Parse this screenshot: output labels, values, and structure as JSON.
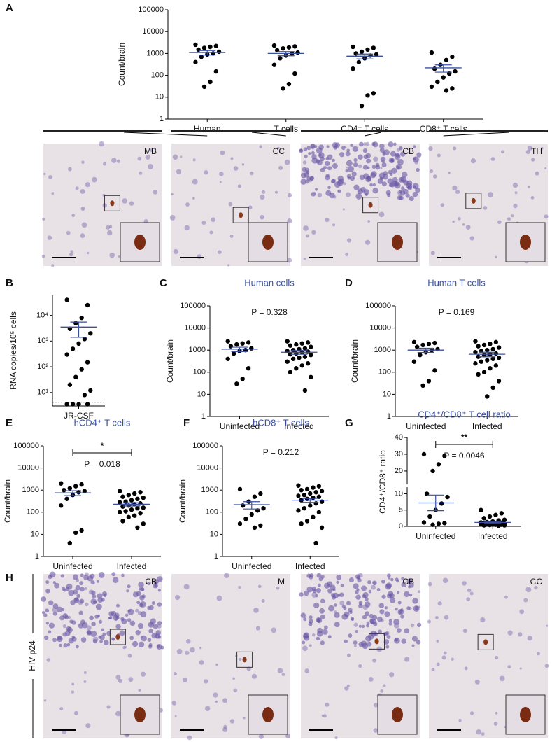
{
  "chart_data": [
    {
      "type": "strip",
      "panel": "A",
      "ylabel": "Count/brain",
      "log": true,
      "categories": [
        "Human",
        "T cells",
        "CD4⁺ T cells",
        "CD8⁺ T cells"
      ],
      "values": [
        [
          2500,
          2200,
          2000,
          1800,
          1500,
          1200,
          1000,
          900,
          700,
          400,
          150,
          50,
          30
        ],
        [
          2300,
          2100,
          1900,
          1700,
          1400,
          1100,
          1000,
          800,
          600,
          300,
          120,
          40,
          25
        ],
        [
          2000,
          1800,
          1500,
          1200,
          1000,
          900,
          800,
          600,
          400,
          200,
          15,
          12,
          4
        ],
        [
          1100,
          700,
          500,
          300,
          200,
          150,
          120,
          80,
          50,
          30,
          25,
          20
        ]
      ],
      "mean": [
        1100,
        1000,
        750,
        220
      ],
      "sem_low": [
        850,
        780,
        560,
        140
      ],
      "sem_high": [
        1350,
        1220,
        940,
        300
      ],
      "ylim": [
        1,
        100000
      ],
      "yticks": [
        1,
        10,
        100,
        1000,
        10000,
        100000
      ],
      "color": "#3a4fa0"
    },
    {
      "type": "strip",
      "panel": "B",
      "ylabel": "RNA copies/10⁵ cells",
      "log": true,
      "categories": [
        "JR-CSF"
      ],
      "values": [
        [
          40000,
          25000,
          8000,
          5000,
          3000,
          2000,
          1200,
          800,
          500,
          300,
          150,
          80,
          40,
          20,
          12,
          8,
          3.5,
          3.5,
          3.5,
          3.5
        ]
      ],
      "mean": [
        3500
      ],
      "sem_low": [
        1400
      ],
      "sem_high": [
        5500
      ],
      "detection_limit": 4.2,
      "ylim": [
        3,
        60000
      ],
      "yticks": [
        {
          "value": 10,
          "label": "10¹"
        },
        {
          "value": 100,
          "label": "10²"
        },
        {
          "value": 1000,
          "label": "10³"
        },
        {
          "value": 10000,
          "label": "10⁴"
        }
      ],
      "color": "#3a4fa0"
    },
    {
      "type": "strip",
      "panel": "C",
      "title": "Human cells",
      "p_label": "P = 0.328",
      "ylabel": "Count/brain",
      "log": true,
      "categories": [
        "Uninfected",
        "Infected"
      ],
      "values": [
        [
          2500,
          2200,
          2000,
          1800,
          1500,
          1200,
          1000,
          900,
          700,
          400,
          150,
          50,
          30
        ],
        [
          2500,
          2200,
          2000,
          1800,
          1600,
          1400,
          1200,
          1100,
          1000,
          900,
          850,
          800,
          700,
          650,
          600,
          500,
          450,
          400,
          300,
          250,
          200,
          150,
          100,
          60,
          15
        ]
      ],
      "mean": [
        1100,
        800
      ],
      "sem_low": [
        850,
        650
      ],
      "sem_high": [
        1350,
        950
      ],
      "ylim": [
        1,
        100000
      ],
      "yticks": [
        1,
        10,
        100,
        1000,
        10000,
        100000
      ],
      "color": "#3a4fa0"
    },
    {
      "type": "strip",
      "panel": "D",
      "title": "Human T cells",
      "p_label": "P = 0.169",
      "ylabel": "Count/brain",
      "log": true,
      "categories": [
        "Uninfected",
        "Infected"
      ],
      "values": [
        [
          2300,
          2100,
          1900,
          1700,
          1400,
          1100,
          1000,
          800,
          600,
          300,
          120,
          40,
          25
        ],
        [
          2500,
          2300,
          1900,
          1700,
          1500,
          1300,
          1100,
          1000,
          900,
          800,
          700,
          650,
          600,
          500,
          450,
          400,
          350,
          300,
          250,
          200,
          150,
          100,
          80,
          40,
          20,
          8
        ]
      ],
      "mean": [
        1000,
        650
      ],
      "sem_low": [
        780,
        500
      ],
      "sem_high": [
        1220,
        800
      ],
      "ylim": [
        1,
        100000
      ],
      "yticks": [
        1,
        10,
        100,
        1000,
        10000,
        100000
      ],
      "color": "#3a4fa0"
    },
    {
      "type": "strip",
      "panel": "E",
      "title": "hCD4⁺ T cells",
      "p_label": "P = 0.018",
      "significance": "*",
      "ylabel": "Count/brain",
      "log": true,
      "categories": [
        "Uninfected",
        "Infected"
      ],
      "values": [
        [
          2000,
          1800,
          1500,
          1200,
          1000,
          900,
          800,
          600,
          400,
          200,
          15,
          12,
          4
        ],
        [
          900,
          800,
          700,
          600,
          500,
          450,
          400,
          350,
          300,
          280,
          250,
          230,
          200,
          180,
          160,
          150,
          130,
          110,
          100,
          90,
          70,
          60,
          40,
          30,
          20
        ]
      ],
      "mean": [
        750,
        230
      ],
      "sem_low": [
        560,
        190
      ],
      "sem_high": [
        940,
        270
      ],
      "ylim": [
        1,
        100000
      ],
      "yticks": [
        1,
        10,
        100,
        1000,
        10000,
        100000
      ],
      "color": "#3a4fa0"
    },
    {
      "type": "strip",
      "panel": "F",
      "title": "hCD8⁺ T cells",
      "p_label": "P = 0.212",
      "ylabel": "Count/brain",
      "log": true,
      "categories": [
        "Uninfected",
        "Infected"
      ],
      "values": [
        [
          1100,
          700,
          500,
          300,
          200,
          150,
          120,
          80,
          50,
          30,
          25,
          20
        ],
        [
          1600,
          1500,
          1300,
          1100,
          1000,
          900,
          800,
          700,
          600,
          550,
          500,
          450,
          400,
          350,
          300,
          250,
          200,
          150,
          120,
          100,
          60,
          40,
          30,
          20,
          4
        ]
      ],
      "mean": [
        220,
        350
      ],
      "sem_low": [
        140,
        280
      ],
      "sem_high": [
        300,
        420
      ],
      "ylim": [
        1,
        100000
      ],
      "yticks": [
        1,
        10,
        100,
        1000,
        10000,
        100000
      ],
      "color": "#3a4fa0"
    },
    {
      "type": "strip",
      "panel": "G",
      "title": "CD4⁺/CD8⁺ T cell ratio",
      "p_label": "P = 0.0046",
      "significance": "**",
      "ylabel": "CD4⁺/CD8⁺ ratio",
      "log": false,
      "categories": [
        "Uninfected",
        "Infected"
      ],
      "values": [
        [
          30,
          29,
          24,
          20,
          10,
          9,
          7,
          5,
          3,
          1.2,
          1,
          0.8,
          0.5
        ],
        [
          5,
          4,
          3.5,
          3,
          2.5,
          2,
          1.8,
          1.5,
          1.3,
          1.2,
          1.1,
          1,
          1,
          0.9,
          0.8,
          0.8,
          0.7,
          0.7,
          0.6,
          0.5,
          0.5,
          0.4,
          0.3,
          0.3,
          0.2
        ]
      ],
      "mean": [
        7.2,
        1.2
      ],
      "sem_low": [
        4.8,
        0.9
      ],
      "sem_high": [
        9.6,
        1.5
      ],
      "ylim": [
        0,
        40
      ],
      "axis_break": 12,
      "yticks": [
        0,
        5,
        10,
        20,
        30,
        40
      ],
      "color": "#3a4fa0"
    }
  ],
  "images_a": {
    "labels": [
      "MB",
      "CC",
      "CB",
      "TH"
    ]
  },
  "images_h": {
    "panel": "H",
    "y_label": "HIV p24",
    "labels": [
      "CB",
      "M",
      "CB",
      "CC"
    ]
  }
}
